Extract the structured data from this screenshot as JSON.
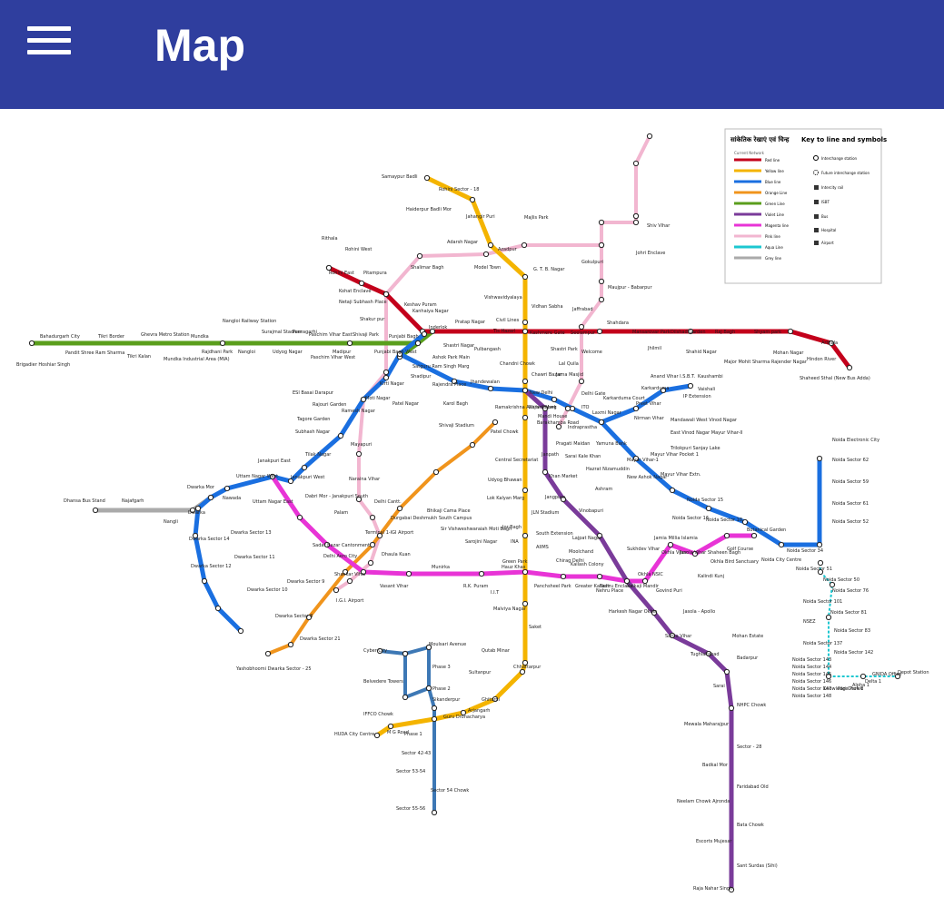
{
  "app_bar": {
    "title": "Map",
    "menu_icon": "hamburger-menu-icon",
    "background": "#2f3e9e"
  },
  "legend": {
    "title_hindi": "सांकेतिक रेखाएं एवं चिन्ह",
    "title": "Key to line and symbols",
    "current_network": "Current Network",
    "items": [
      {
        "label": "Red line",
        "color": "#c3001b"
      },
      {
        "label": "Yellow line",
        "color": "#f4b400"
      },
      {
        "label": "Blue line",
        "color": "#1a6fe0"
      },
      {
        "label": "Orange Line",
        "color": "#f0941c"
      },
      {
        "label": "Green Line",
        "color": "#5a9e1c"
      },
      {
        "label": "Violet Line",
        "color": "#7a3b9a"
      },
      {
        "label": "Magenta line",
        "color": "#e834d6"
      },
      {
        "label": "Pink line",
        "color": "#f2b6d0"
      },
      {
        "label": "Aqua Line",
        "color": "#1cc7d0"
      },
      {
        "label": "Grey line",
        "color": "#aaaaaa"
      }
    ],
    "symbols": [
      "Interchange station",
      "Future interchange station",
      "Intercity rail",
      "ISBT",
      "Bus",
      "Hospital",
      "Airport"
    ]
  },
  "stations": {
    "samaypur_badli": "Samaypur Badli",
    "rohini_18": "Rohini Sector - 18",
    "haiderpur": "Haiderpur Badli Mor",
    "jahangirpuri": "Jahangir Puri",
    "majlis_park": "Majlis Park",
    "adarsh_nagar": "Adarsh Nagar",
    "azadpur": "Azadpur",
    "shalimar_bagh": "Shalimar Bagh",
    "model_town": "Model Town",
    "gtb_nagar": "G. T. B. Nagar",
    "rithala": "Rithala",
    "rohini_west": "Rohini West",
    "rohini_east": "Rohini East",
    "pitampura": "Pitampura",
    "kohat_enclave": "Kohat Enclave",
    "netaji_subhash": "Netaji Subhash Place",
    "keshav_puram": "Keshav Puram",
    "kanhaiya_nagar": "Kanhaiya Nagar",
    "shakurpur": "Shakur pur",
    "vishwavidyalaya": "Vishwavidyalaya",
    "vidhan_sabha": "Vidhan Sabha",
    "civil_lines": "Civil Lines",
    "welcome": "Welcome",
    "shiv_vihar": "Shiv Vihar",
    "johri_enclave": "Johri Enclave",
    "gokulpuri": "Gokulpuri",
    "maujpur": "Maujpur - Babarpur",
    "jaffrabad": "Jaffrabad",
    "shahdara": "Shahdara",
    "mansarovar": "Mansarovar Park",
    "jhilmil": "Jhilmil",
    "dilshad_garden": "Dilshad Garden",
    "shaheed_nagar": "Shahid Nagar",
    "raj_bagh": "Raj Bagh",
    "shyam_park": "Shyam park",
    "major_mohit": "Major Mohit Sharma Rajender Nagar",
    "mohan_nagar": "Mohan Nagar",
    "arthala": "Arthala",
    "hindon_river": "Hindon River",
    "shaheed_sthal": "Shaheed Sthal (New Bus Adda)",
    "mundka": "Mundka",
    "mundka_industrial": "Mundka Industrial Area (MIA)",
    "rajdhani_park": "Rajdhani Park",
    "nangloi": "Nangloi",
    "nangloi_rly": "Nangloi Railway Station",
    "surajmal": "Surajmal Stadium",
    "udyog_nagar": "Udyog Nagar",
    "peeragarhi": "Peeragarhi",
    "paschim_vihar_west": "Paschim Vihar West",
    "paschim_vihar_east": "Paschim Vihar East",
    "madipur": "Madipur",
    "shivaji_park": "Shivaji Park",
    "punjabi_bagh": "Punjabi Bagh",
    "punjabi_bagh_west": "Punjabi Bagh West",
    "ashok_park": "Ashok Park Main",
    "satguru": "Satguru Ram Singh Marg",
    "inderlok": "Inderlok",
    "shastri_nagar": "Shastri Nagar",
    "pratap_nagar": "Pratap Nagar",
    "pulbangash": "Pulbangash",
    "tis_hazari": "Tis Hazari",
    "kashmere_gate": "Kashmere Gate",
    "shastri_park": "Shastri Park",
    "seelampur": "Seelampur",
    "brigadier": "Brigadier Hoshiar Singh",
    "bahadurgarh": "Bahadurgarh City",
    "pandit_shree_ram": "Pandit Shree Ram Sharma",
    "tikri_border": "Tikri Border",
    "tikri_kalan": "Tikri Kalan",
    "ghevra": "Ghevra Metro Station",
    "esi": "ESI Basai Darapur",
    "rajouri_garden": "Rajouri Garden",
    "tagore_garden": "Tagore Garden",
    "subhash_nagar": "Subhash Nagar",
    "tilak_nagar": "Tilak Nagar",
    "janakpuri_east": "Janakpuri East",
    "janakpuri_west": "Janakpuri West",
    "uttam_nagar_east": "Uttam Nagar East",
    "uttam_nagar_west": "Uttam Nagar West",
    "nawada": "Nawada",
    "dwarka_mor": "Dwarka Mor",
    "dwarka": "Dwarka",
    "dhansa": "Dhansa Bus Stand",
    "najafgarh": "Najafgarh",
    "nangli": "Nangli",
    "dwarka_14": "Dwarka Sector 14",
    "dwarka_13": "Dwarka Sector 13",
    "dwarka_12": "Dwarka Sector 12",
    "dwarka_11": "Dwarka Sector 11",
    "dwarka_10": "Dwarka Sector 10",
    "dwarka_9": "Dwarka Sector 9",
    "dwarka_8": "Dwarka Sector 8",
    "dwarka_21": "Dwarka Sector 21",
    "yashobhoomi": "Yashobhoomi Dwarka Sector - 25",
    "igi": "I.G.I. Airport",
    "delhi_aerocity": "Delhi Aero City",
    "dhaula_kuan": "Dhaula Kuan",
    "shankar_vihar": "Shankar Vihar",
    "vasant_vihar": "Vasant Vihar",
    "munirka": "Munirka",
    "rk_puram": "R.K. Puram",
    "iit": "I.I.T",
    "hauz_khas": "Hauz Khas",
    "panchsheel": "Panchsheel Park",
    "chirag_delhi": "Chirag Delhi",
    "greater_kailash": "Greater Kailash",
    "nehru_enclave": "Nehru Enclave",
    "kalkaji": "Kalkaji Mandir",
    "okhla_nsic": "Okhla NSIC",
    "sukhdev_vihar": "Sukhdev Vihar",
    "jamia": "Jamia Millia Islamia",
    "okhla_vihar": "Okhla Vihar",
    "jasola_vihar": "Jasola Vihar Shaheen Bagh",
    "kalindi_kunj": "Kalindi Kunj",
    "okhla_bird": "Okhla Bird Sanctuary",
    "botanical": "Botanical Garden",
    "golf_course": "Golf Course",
    "noida_city": "Noida City Centre",
    "noida_34": "Noida Sector 34",
    "noida_52": "Noida Sector 52",
    "noida_61": "Noida Sector 61",
    "noida_59": "Noida Sector 59",
    "noida_62": "Noida Sector 62",
    "noida_electronic": "Noida Electronic City",
    "noida_15": "Noida Sector 15",
    "noida_16": "Noida Sector 16",
    "noida_18": "Noida Sector 18",
    "new_ashok_nagar": "New Ashok Nagar",
    "mayur_vihar_ext": "Mayur Vihar Extn.",
    "mayur_vihar_1": "Mayur Vihar-1",
    "mayur_vihar_pocket": "Mayur Vihar Pocket 1",
    "trilokpuri": "Trilokpuri Sanjay Lake",
    "east_vinod_nagar": "East Vinod Nagar Mayur Vihar-II",
    "mandawali": "Mandawali West Vinod Nagar",
    "ip_extension": "IP Extension",
    "anand_vihar": "Anand Vihar I.S.B.T.",
    "karkarduma": "Karkarduma",
    "karkarduma_court": "Karkarduma Court",
    "kaushambi": "Kaushambi",
    "vaishali": "Vaishali",
    "preet_vihar": "Preet Vihar",
    "nirman_vihar": "Nirman Vihar",
    "laxmi_nagar": "Laxmi Nagar",
    "yamuna_bank": "Yamuna Bank",
    "indraprastha": "Indraprastha",
    "pragati_maidan": "Pragati Maidan",
    "mandi_house": "Mandi House",
    "barakhamba": "Barakhamba Road",
    "rajiv_chowk": "Rajiv Chowk",
    "new_delhi": "New Delhi",
    "chawri_bazar": "Chawri Bazar",
    "chandni_chowk": "Chandni Chowk",
    "lal_quila": "Lal Quila",
    "jama_masjid": "Jama Masjid",
    "delhi_gate": "Delhi Gate",
    "ito": "ITO",
    "ramakrishna": "Ramakrishna Ashram Marg",
    "jhandewalan": "Jhandewalan",
    "karol_bagh": "Karol Bagh",
    "rajendra_place": "Rajendra Place",
    "patel_nagar": "Patel Nagar",
    "shadipur": "Shadipur",
    "kirti_nagar": "Kirti Nagar",
    "moti_nagar": "Moti Nagar",
    "ramesh_nagar": "Ramesh Nagar",
    "mayapuri": "Mayapuri",
    "naraina": "Naraina Vihar",
    "delhi_cantt": "Delhi Cantt.",
    "durgabai": "Durgabai Deshmukh South Campus",
    "moti_bagh": "Sir Vishweshwaraiah Moti Bagh",
    "bhikaji": "Bhikaji Cama Place",
    "sarojini": "Sarojini Nagar",
    "ina": "INA",
    "aiims": "AIIMS",
    "green_park": "Green Park",
    "south_extension": "South Extension",
    "lajpat_nagar": "Lajpat Nagar",
    "vinobapuri": "Vinobapuri",
    "ashram": "Ashram",
    "hazrat": "Hazrat Nizamuddin",
    "sarai_kale_khan": "Sarai Kale Khan",
    "jangpura": "Jangpura",
    "jln": "JLN Stadium",
    "jor_bagh": "Jor Bagh",
    "lok_kalyan": "Lok Kalyan Marg",
    "udyog_bhawan": "Udyog Bhawan",
    "central_secretariat": "Central Secretariat",
    "khan_market": "Khan Market",
    "janpath": "Janpath",
    "patel_chowk": "Patel Chowk",
    "shivaji_stadium": "Shivaji Stadium",
    "moolchand": "Moolchand",
    "kailash_colony": "Kailash Colony",
    "malviya_nagar": "Malviya Nagar",
    "saket": "Saket",
    "qutab_minar": "Qutab Minar",
    "chhattarpur": "Chhattarpur",
    "sultanpur": "Sultanpur",
    "ghitorni": "Ghitorni",
    "arjangarh": "Arjangarh",
    "guru_dronacharya": "Guru Dronacharya",
    "sikanderpur": "Sikanderpur",
    "mg_road": "M G Road",
    "iffco": "IFFCO Chowk",
    "huda": "HUDA City Centre",
    "moulsari": "Moulsari Avenue",
    "cyber_city": "Cyber City",
    "belvedere": "Belvedere Towers",
    "phase_1": "Phase 1",
    "phase_2": "Phase 2",
    "phase_3": "Phase 3",
    "sector_42": "Sector 42-43",
    "sector_53": "Sector 53-54",
    "sector_54": "Sector 54 Chowk",
    "sector_55": "Sector 55-56",
    "nehru_place": "Nehru Place",
    "govind_puri": "Govind Puri",
    "harkesh": "Harkesh Nagar Okhla",
    "jasola_apollo": "Jasola - Apollo",
    "sarita_vihar": "Sarita Vihar",
    "mohan_estate": "Mohan Estate",
    "tughlakabad": "Tughlakabad",
    "badarpur": "Badarpur",
    "sarai": "Sarai",
    "nhpc": "NHPC Chowk",
    "mewala": "Mewala Maharajpur",
    "sector_28": "Sector - 28",
    "badkal": "Badkal Mor",
    "faridabad_old": "Faridabad Old",
    "neelam": "Neelam Chowk Ajronda",
    "bata_chowk": "Bata Chowk",
    "escorts": "Escorts Mujesar",
    "sant_surdas": "Sant Surdas (Sihi)",
    "raja_nahar": "Raja Nahar Singh",
    "terminal_1": "Terminal 1-IGI Airport",
    "dashrath_puri": "Dabri Mor - Janakpuri South",
    "palam": "Palam",
    "sadar_bazar": "Sadar Bazar Cantonment",
    "dwarka_sec_tag": "Dwarka",
    "depot": "Depot Station",
    "noida_aqua": [
      "Noida Sector 51",
      "Noida Sector 50",
      "Noida Sector 76",
      "Noida Sector 101",
      "Noida Sector 81",
      "NSEZ",
      "Noida Sector 83",
      "Noida Sector 137",
      "Noida Sector 142",
      "Noida Sector 143",
      "Noida Sector 144",
      "Noida Sector 145",
      "Noida Sector 146",
      "Noida Sector 147",
      "Noida Sector 148"
    ],
    "knowledge_park": "Knowledge Park II",
    "pari_chowk": "Pari Chowk",
    "alpha": "Alpha 1",
    "delta": "Delta 1",
    "gnida": "GNIDA Office",
    "depot_label": "Depot"
  },
  "map_area_bg": "#ffffff"
}
